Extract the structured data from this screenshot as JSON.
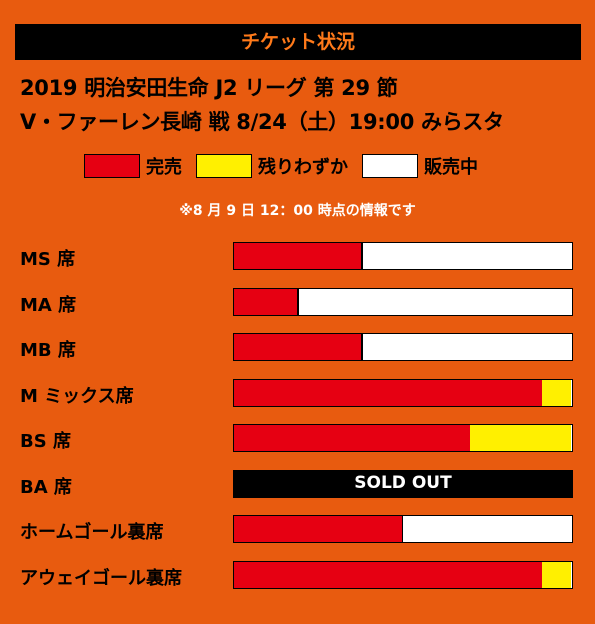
{
  "header": {
    "title": "チケット状況"
  },
  "match": {
    "line1": "2019 明治安田生命 J2 リーグ 第 29 節",
    "line2": "V・ファーレン長崎 戦 8/24（土）19:00 みらスタ"
  },
  "legend": {
    "sold": {
      "label": "完売",
      "color": "#e60012"
    },
    "few": {
      "label": "残りわずか",
      "color": "#fff000"
    },
    "available": {
      "label": "販売中",
      "color": "#ffffff"
    }
  },
  "note": "※8 月 9 日 12：00 時点の情報です",
  "chart_data": {
    "type": "bar",
    "orientation": "horizontal",
    "stacked": true,
    "categories": [
      "MS 席",
      "MA 席",
      "MB 席",
      "M ミックス席",
      "BS 席",
      "BA 席",
      "ホームゴール裏席",
      "アウェイゴール裏席"
    ],
    "series": [
      {
        "name": "完売",
        "color": "#e60012",
        "values": [
          0.38,
          0.19,
          0.38,
          0.915,
          0.7,
          1.0,
          0.5,
          0.915
        ]
      },
      {
        "name": "残りわずか",
        "color": "#fff000",
        "values": [
          0,
          0,
          0,
          0.085,
          0.3,
          0,
          0,
          0.085
        ]
      },
      {
        "name": "販売中",
        "color": "#ffffff",
        "values": [
          0.62,
          0.81,
          0.62,
          0,
          0,
          0,
          0.5,
          0
        ]
      }
    ],
    "soldout": [
      false,
      false,
      false,
      false,
      false,
      true,
      false,
      false
    ],
    "soldout_label": "SOLD OUT",
    "xlim": [
      0,
      1
    ]
  }
}
